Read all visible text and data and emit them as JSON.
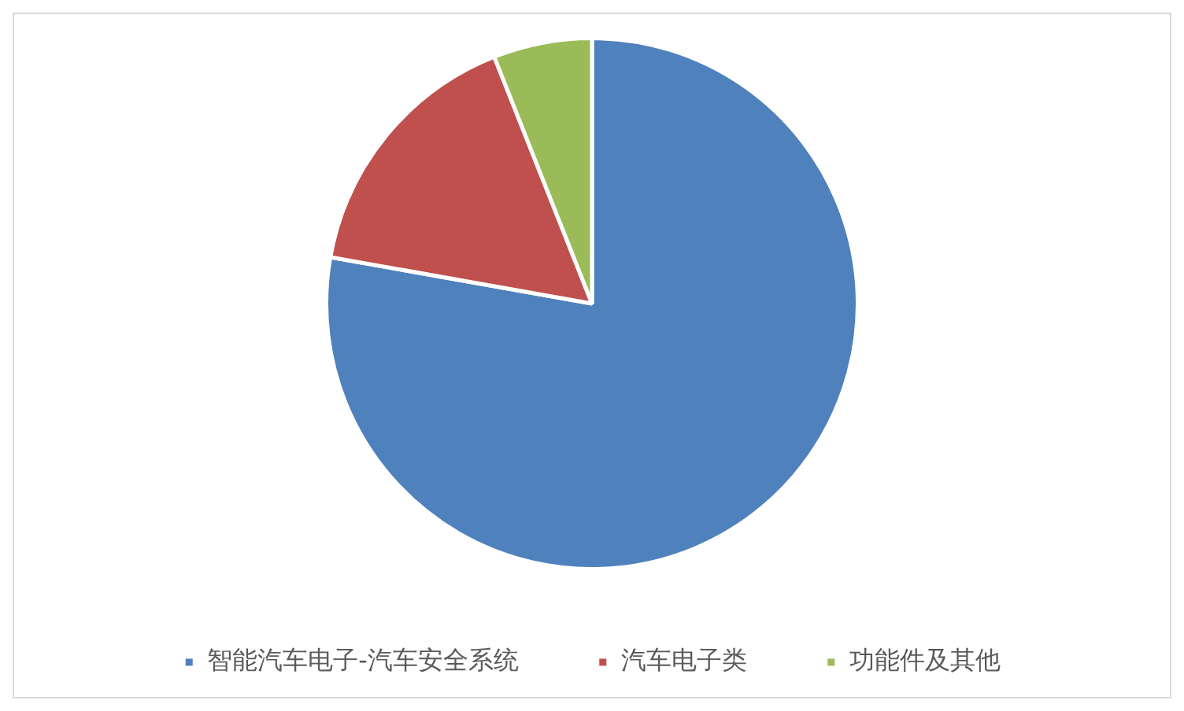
{
  "chart_data": {
    "type": "pie",
    "categories": [
      "智能汽车电子-汽车安全系统",
      "汽车电子类",
      "功能件及其他"
    ],
    "values": [
      77.8,
      16.2,
      6.0
    ],
    "colors": [
      "#4f81bd",
      "#c0504d",
      "#9bbb59"
    ],
    "legend": "bottom"
  }
}
